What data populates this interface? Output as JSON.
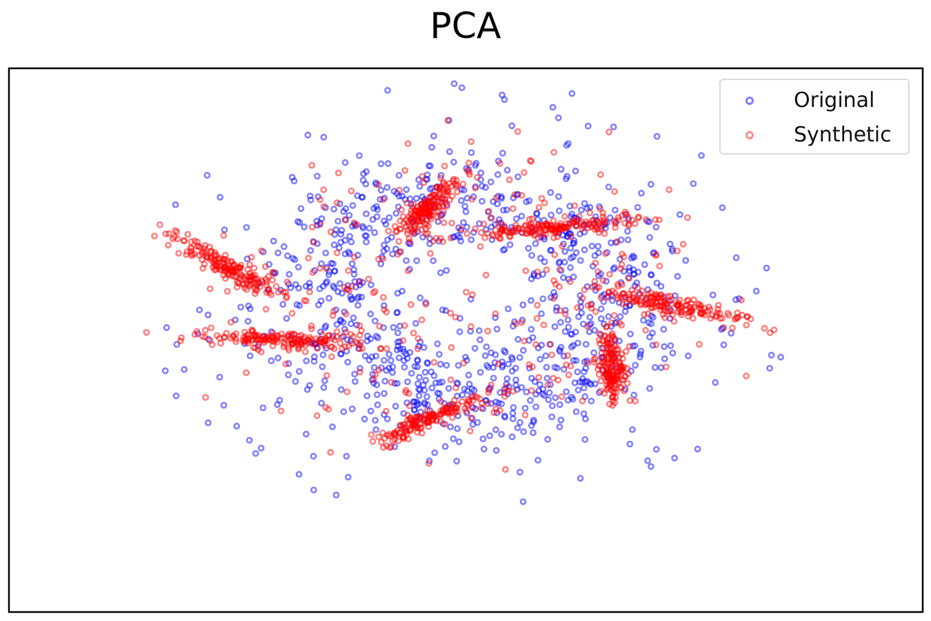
{
  "chart_data": {
    "type": "scatter",
    "title": "PCA",
    "xlabel": "",
    "ylabel": "",
    "xlim": [
      -1.0,
      1.0
    ],
    "ylim": [
      -0.8,
      0.8
    ],
    "ticks_visible": false,
    "grid": false,
    "legend_position": "upper-right",
    "marker": "hollow circle, alpha 0.5",
    "series": [
      {
        "name": "Original",
        "color": "#0000ff",
        "description": "broad ring of points around the center plus scattered outliers",
        "point_count_estimate": 1400
      },
      {
        "name": "Synthetic",
        "color": "#ff0000",
        "description": "seven dense elongated clusters arranged on the same ring plus sparse points",
        "point_count_estimate": 1400
      }
    ]
  }
}
